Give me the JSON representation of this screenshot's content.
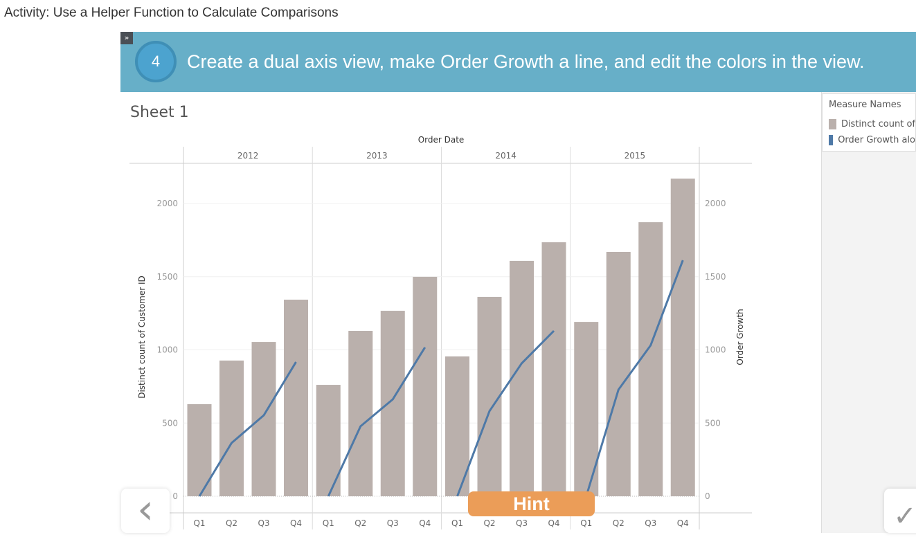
{
  "page_title": "Activity: Use a Helper Function to Calculate Comparisons",
  "banner": {
    "step": "4",
    "instruction": "Create a dual axis view, make Order Growth a line, and edit the colors in the view.",
    "expand_icon": "double-chevron-right-icon"
  },
  "sheet_title": "Sheet 1",
  "legend": {
    "title": "Measure Names",
    "items": [
      {
        "label": "Distinct count of",
        "color": "#bab0ac"
      },
      {
        "label": "Order Growth alo",
        "color": "#4e79a7"
      }
    ]
  },
  "hint_label": "Hint",
  "nav": {
    "prev_icon": "chevron-left-icon",
    "next_icon": "check-icon"
  },
  "chart_data": {
    "type": "bar",
    "column_header": "Order Date",
    "years": [
      "2012",
      "2013",
      "2014",
      "2015"
    ],
    "quarters": [
      "Q1",
      "Q2",
      "Q3",
      "Q4"
    ],
    "ylabel": "Distinct count of Customer ID",
    "y2label": "Order Growth",
    "ylim": [
      0,
      2200
    ],
    "yticks": [
      0,
      500,
      1000,
      1500,
      2000
    ],
    "series": [
      {
        "name": "Distinct count of Customer ID",
        "type": "bar",
        "color": "#bab0ac",
        "values": [
          629,
          927,
          1054,
          1343,
          761,
          1130,
          1267,
          1499,
          955,
          1362,
          1608,
          1735,
          1191,
          1669,
          1872,
          2170
        ]
      },
      {
        "name": "Order Growth",
        "type": "line",
        "color": "#4e79a7",
        "values": [
          0,
          364,
          553,
          917,
          0,
          478,
          662,
          1017,
          0,
          582,
          908,
          1130,
          0,
          728,
          1031,
          1612
        ]
      }
    ]
  }
}
